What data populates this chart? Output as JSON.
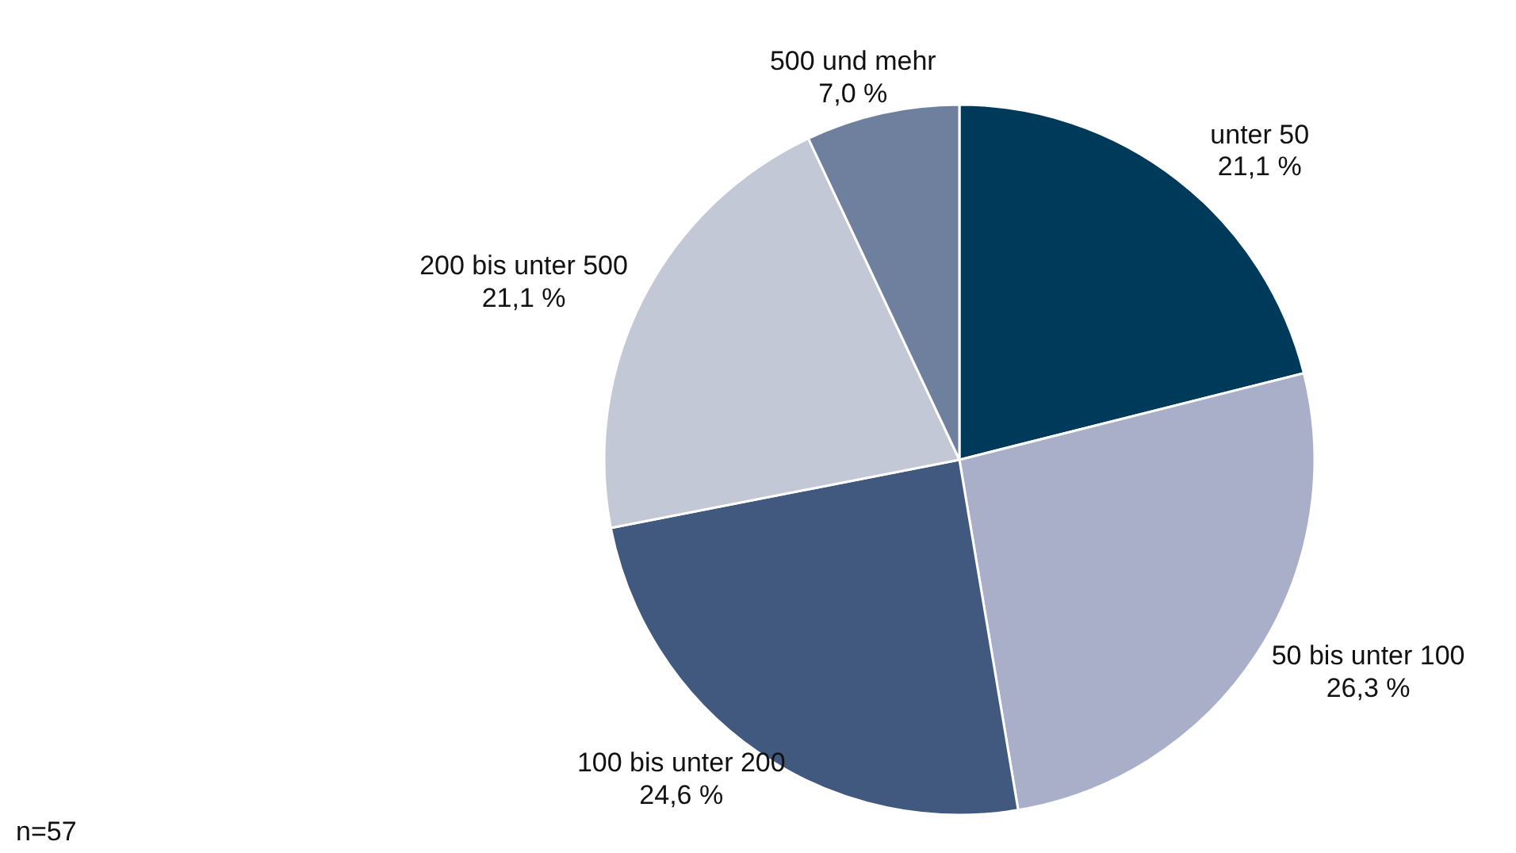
{
  "chart_data": {
    "type": "pie",
    "categories": [
      "unter 50",
      "50 bis unter 100",
      "100 bis unter 200",
      "200 bis unter 500",
      "500 und mehr"
    ],
    "values": [
      21.1,
      26.3,
      24.6,
      21.1,
      7.0
    ],
    "value_labels": [
      "21,1 %",
      "26,3 %",
      "24,6 %",
      "21,1 %",
      "7,0 %"
    ],
    "colors": [
      "#003a5a",
      "#a9afc8",
      "#42597f",
      "#c3c8d6",
      "#6f7f9e"
    ],
    "annotations": [
      "n=57"
    ],
    "legend": false
  }
}
